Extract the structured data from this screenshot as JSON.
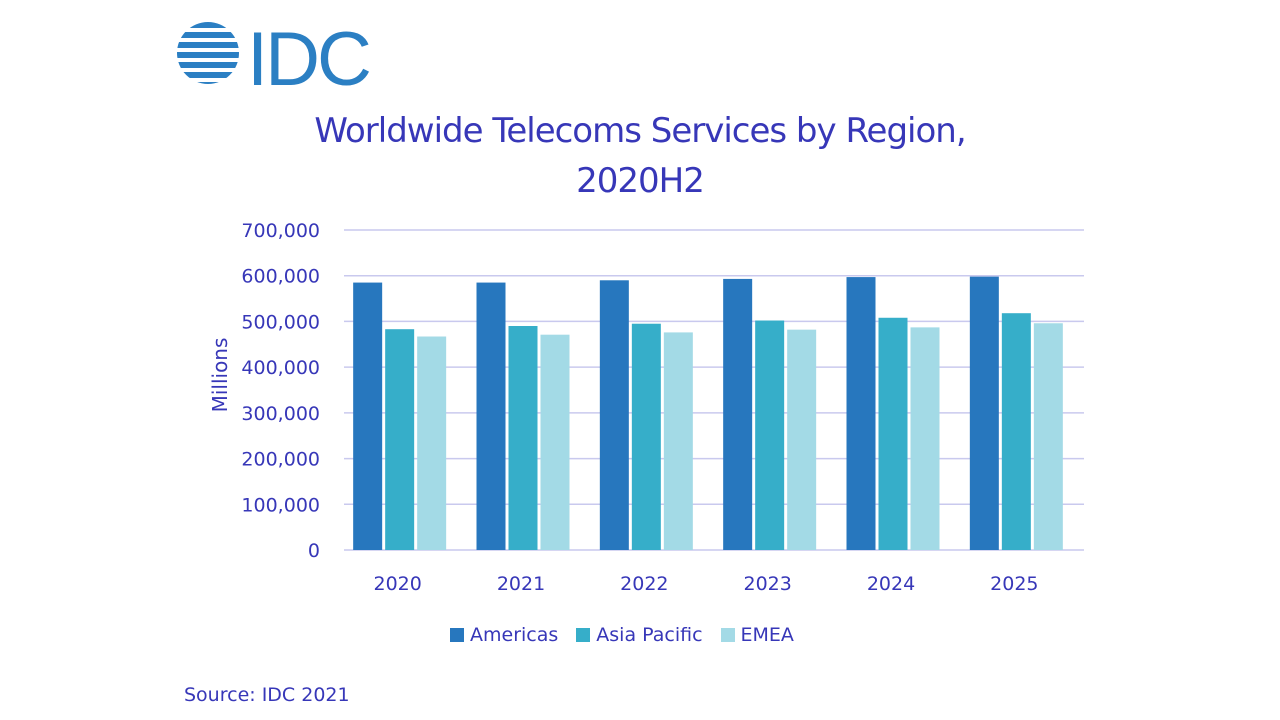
{
  "logo": {
    "text": "IDC",
    "icon": "globe-stripes-icon",
    "color": "#2b7fc3"
  },
  "source": "Source: IDC 2021",
  "colors": {
    "text": "#3737b8",
    "grid": "#c9c9ee",
    "Americas": "#2777be",
    "Asia Pacific": "#36aec9",
    "EMEA": "#a3dae6"
  },
  "chart_data": {
    "type": "bar",
    "title_lines": [
      "Worldwide Telecoms Services by Region,",
      "2020H2"
    ],
    "ylabel": "Millions",
    "xlabel": "",
    "categories": [
      "2020",
      "2021",
      "2022",
      "2023",
      "2024",
      "2025"
    ],
    "series": [
      {
        "name": "Americas",
        "values": [
          585000,
          585000,
          590000,
          593000,
          597000,
          598000
        ]
      },
      {
        "name": "Asia Pacific",
        "values": [
          483000,
          490000,
          495000,
          502000,
          508000,
          518000
        ]
      },
      {
        "name": "EMEA",
        "values": [
          467000,
          471000,
          476000,
          482000,
          487000,
          496000
        ]
      }
    ],
    "ylim": [
      0,
      700000
    ],
    "yticks": [
      0,
      100000,
      200000,
      300000,
      400000,
      500000,
      600000,
      700000
    ],
    "ytick_labels": [
      "0",
      "100,000",
      "200,000",
      "300,000",
      "400,000",
      "500,000",
      "600,000",
      "700,000"
    ],
    "grid": true,
    "legend_position": "bottom"
  }
}
